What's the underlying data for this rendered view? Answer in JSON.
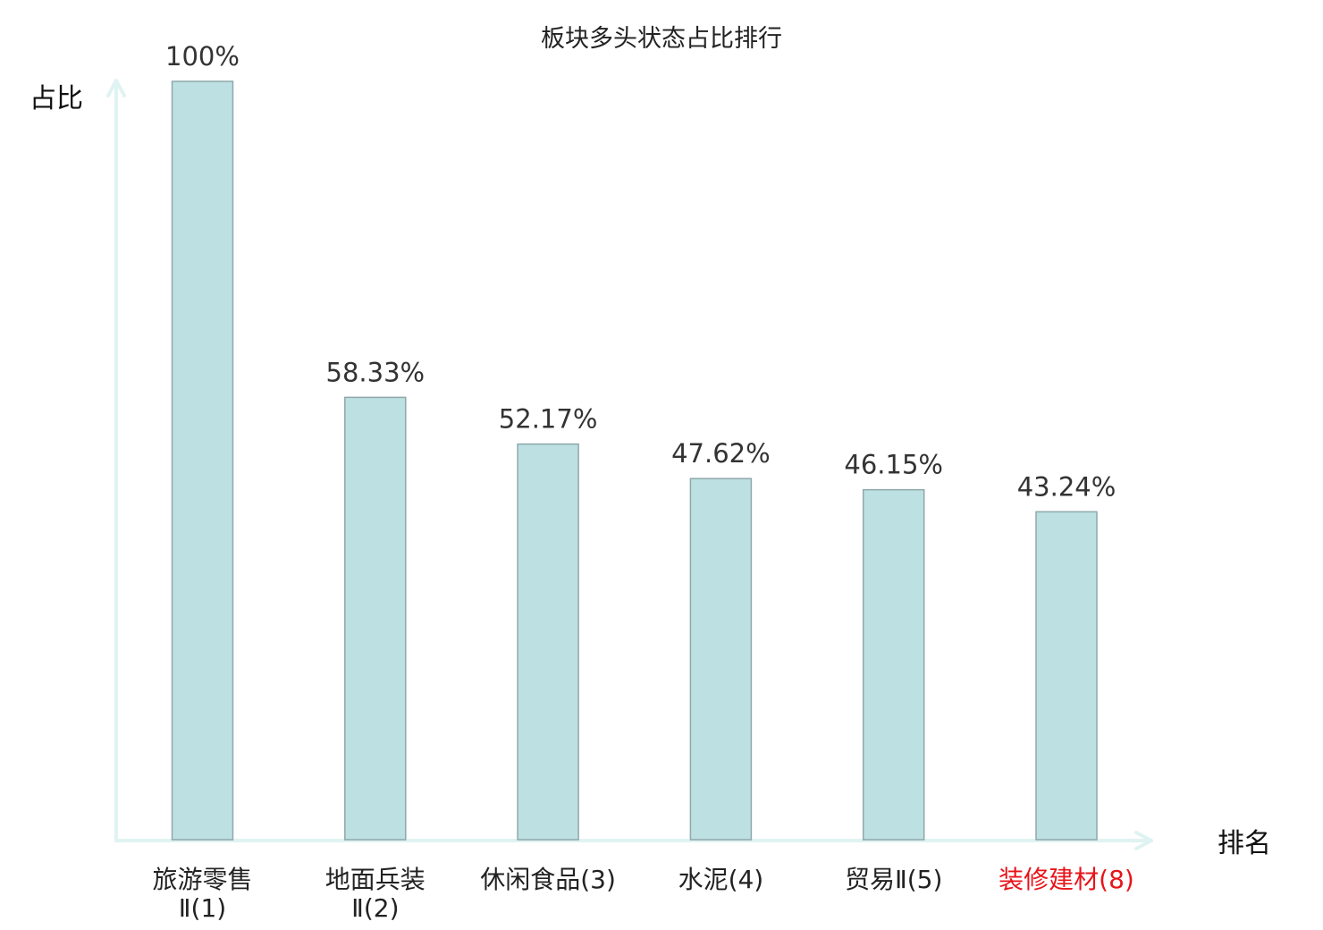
{
  "chart_data": {
    "type": "bar",
    "title": "板块多头状态占比排行",
    "xlabel": "排名",
    "ylabel": "占比",
    "ylim": [
      0,
      100
    ],
    "grid": false,
    "legend": "none",
    "categories": [
      [
        "旅游零售",
        "Ⅱ(1)"
      ],
      [
        "地面兵装",
        "Ⅱ(2)"
      ],
      [
        "休闲食品(3)"
      ],
      [
        "水泥(4)"
      ],
      [
        "贸易Ⅱ(5)"
      ],
      [
        "装修建材(8)"
      ]
    ],
    "highlighted_category": 5,
    "values": [
      100,
      58.33,
      52.17,
      47.62,
      46.15,
      43.24
    ],
    "value_labels": [
      "100%",
      "58.33%",
      "52.17%",
      "47.62%",
      "46.15%",
      "43.24%"
    ],
    "colors": {
      "bar_fill": "#bde0e3",
      "bar_stroke": "#8fa8aa",
      "axis": "#dff3f2",
      "highlight_text": "#e8141a"
    }
  }
}
